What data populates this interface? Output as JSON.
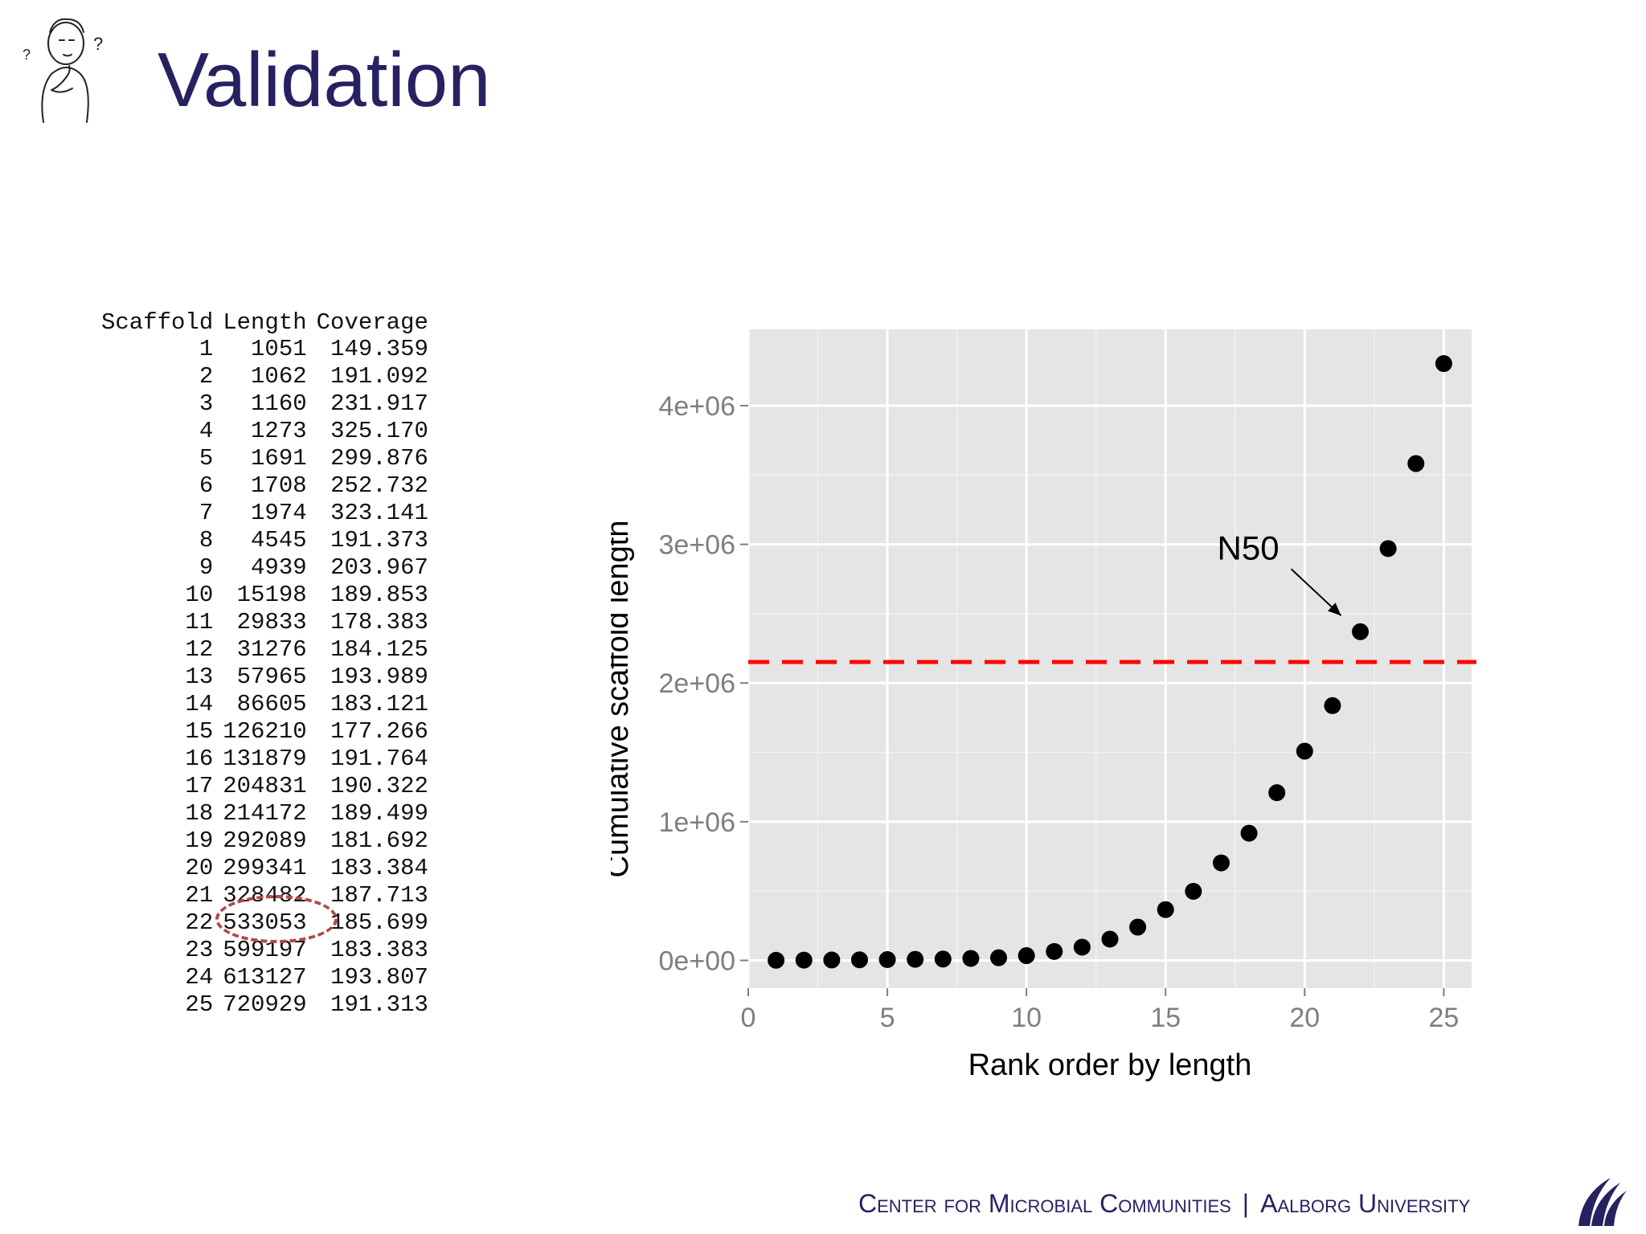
{
  "slide": {
    "title": "Validation",
    "footer_left": "Center for Microbial Communities",
    "footer_separator": "|",
    "footer_right": "Aalborg University"
  },
  "table": {
    "headers": [
      "Scaffold",
      "Length",
      "Coverage"
    ],
    "rows": [
      [
        "1",
        "1051",
        "149.359"
      ],
      [
        "2",
        "1062",
        "191.092"
      ],
      [
        "3",
        "1160",
        "231.917"
      ],
      [
        "4",
        "1273",
        "325.170"
      ],
      [
        "5",
        "1691",
        "299.876"
      ],
      [
        "6",
        "1708",
        "252.732"
      ],
      [
        "7",
        "1974",
        "323.141"
      ],
      [
        "8",
        "4545",
        "191.373"
      ],
      [
        "9",
        "4939",
        "203.967"
      ],
      [
        "10",
        "15198",
        "189.853"
      ],
      [
        "11",
        "29833",
        "178.383"
      ],
      [
        "12",
        "31276",
        "184.125"
      ],
      [
        "13",
        "57965",
        "193.989"
      ],
      [
        "14",
        "86605",
        "183.121"
      ],
      [
        "15",
        "126210",
        "177.266"
      ],
      [
        "16",
        "131879",
        "191.764"
      ],
      [
        "17",
        "204831",
        "190.322"
      ],
      [
        "18",
        "214172",
        "189.499"
      ],
      [
        "19",
        "292089",
        "181.692"
      ],
      [
        "20",
        "299341",
        "183.384"
      ],
      [
        "21",
        "328482",
        "187.713"
      ],
      [
        "22",
        "533053",
        "185.699"
      ],
      [
        "23",
        "599197",
        "183.383"
      ],
      [
        "24",
        "613127",
        "193.807"
      ],
      [
        "25",
        "720929",
        "191.313"
      ]
    ],
    "highlighted_row": 22,
    "highlight_color": "#b2474a"
  },
  "chart_data": {
    "type": "scatter",
    "title": "",
    "xlabel": "Rank order by length",
    "ylabel": "Cumulative scaffold length",
    "xlim": [
      0,
      26
    ],
    "ylim": [
      -200000,
      4550000
    ],
    "xticks": [
      0,
      5,
      10,
      15,
      20,
      25
    ],
    "yticks": [
      0,
      1000000,
      2000000,
      3000000,
      4000000
    ],
    "ytick_labels": [
      "0e+00",
      "1e+06",
      "2e+06",
      "3e+06",
      "4e+06"
    ],
    "x": [
      1,
      2,
      3,
      4,
      5,
      6,
      7,
      8,
      9,
      10,
      11,
      12,
      13,
      14,
      15,
      16,
      17,
      18,
      19,
      20,
      21,
      22,
      23,
      24,
      25
    ],
    "y": [
      1051,
      2113,
      3273,
      4546,
      6237,
      7945,
      9919,
      14464,
      19403,
      34601,
      64434,
      95710,
      153675,
      240280,
      366490,
      498369,
      703200,
      917372,
      1209461,
      1508802,
      1837284,
      2370337,
      2969534,
      3582661,
      4303590
    ],
    "hline": 2151795,
    "hline_color": "#ff0000",
    "annotation": {
      "text": "N50",
      "x": 22
    },
    "grid": true,
    "panel_color": "#e5e5e5"
  }
}
